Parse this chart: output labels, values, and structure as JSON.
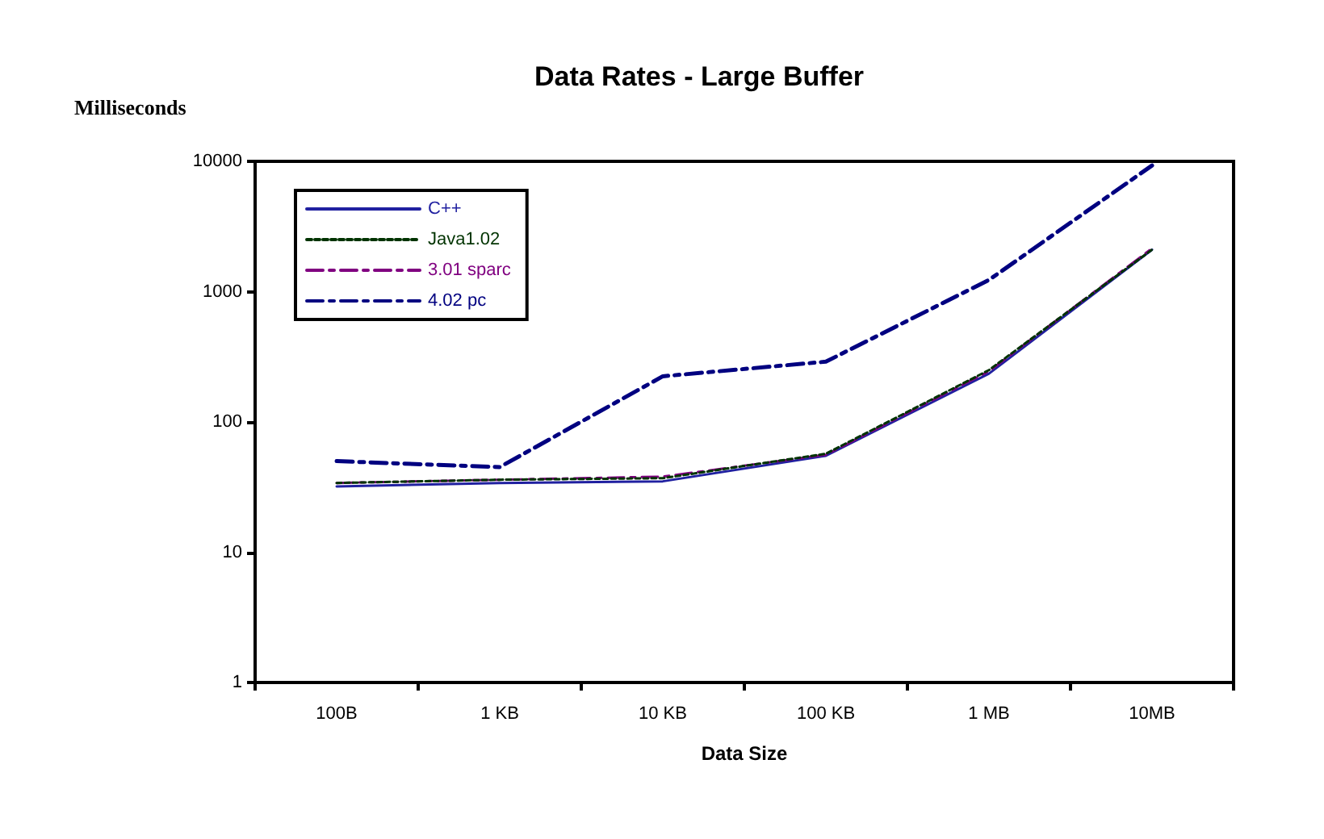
{
  "chart_data": {
    "type": "line",
    "title": "Data Rates - Large Buffer",
    "xlabel": "Data Size",
    "ylabel": "Milliseconds",
    "categories": [
      "100B",
      "1 KB",
      "10 KB",
      "100 KB",
      "1 MB",
      "10MB"
    ],
    "series": [
      {
        "name": "C++",
        "color": "#2020a0",
        "line_style": "solid",
        "values": [
          32,
          34,
          35,
          55,
          235,
          2100
        ]
      },
      {
        "name": "Java1.02",
        "color": "#003300",
        "line_style": "dotted",
        "values": [
          34,
          36,
          37,
          57,
          250,
          2100
        ]
      },
      {
        "name": "3.01 sparc",
        "color": "#800080",
        "line_style": "dashed",
        "values": [
          34,
          36,
          38,
          56,
          245,
          2150
        ]
      },
      {
        "name": "4.02 pc",
        "color": "#000080",
        "line_style": "dashed",
        "values": [
          50,
          45,
          224,
          290,
          1230,
          9300
        ]
      }
    ],
    "log": true,
    "ylim": [
      1,
      10000
    ],
    "yticks": [
      1,
      10,
      100,
      1000,
      10000
    ],
    "grid": false,
    "legend": "top left",
    "marker": "none"
  }
}
